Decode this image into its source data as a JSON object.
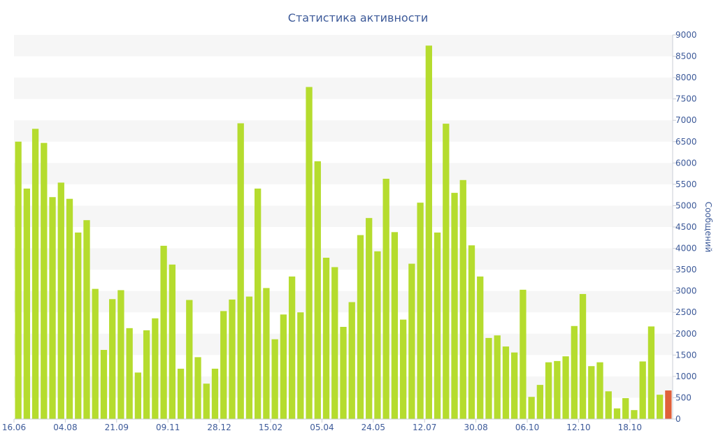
{
  "chart_data": {
    "type": "bar",
    "title": "Статистика активности",
    "xlabel": "",
    "ylabel": "Сообщений",
    "ylim": [
      0,
      9000
    ],
    "y_ticks": [
      0,
      500,
      1000,
      1500,
      2000,
      2500,
      3000,
      3500,
      4000,
      4500,
      5000,
      5500,
      6000,
      6500,
      7000,
      7500,
      8000,
      8500,
      9000
    ],
    "y_axis_position": "right",
    "grid": "horizontal alternating bands",
    "x_tick_labels": [
      {
        "index": 0,
        "label": "16.06"
      },
      {
        "index": 6,
        "label": "04.08"
      },
      {
        "index": 12,
        "label": "21.09"
      },
      {
        "index": 18,
        "label": "09.11"
      },
      {
        "index": 24,
        "label": "28.12"
      },
      {
        "index": 30,
        "label": "15.02"
      },
      {
        "index": 36,
        "label": "05.04"
      },
      {
        "index": 42,
        "label": "24.05"
      },
      {
        "index": 48,
        "label": "12.07"
      },
      {
        "index": 54,
        "label": "30.08"
      },
      {
        "index": 60,
        "label": "06.10"
      },
      {
        "index": 66,
        "label": "12.10"
      },
      {
        "index": 72,
        "label": "18.10"
      }
    ],
    "values": [
      6500,
      5400,
      6800,
      6470,
      5200,
      5540,
      5160,
      4370,
      4660,
      3050,
      1620,
      2810,
      3020,
      2130,
      1090,
      2080,
      2360,
      4060,
      3620,
      1180,
      2790,
      1450,
      830,
      1180,
      2530,
      2800,
      6930,
      2870,
      5400,
      3070,
      1870,
      2450,
      3340,
      2500,
      7780,
      6040,
      3780,
      3560,
      2160,
      2740,
      4310,
      4710,
      3930,
      5630,
      4380,
      2330,
      3640,
      5070,
      8750,
      4370,
      6920,
      5300,
      5600,
      4070,
      3340,
      1900,
      1960,
      1700,
      1560,
      3030,
      520,
      800,
      1330,
      1360,
      1470,
      2180,
      2930,
      1240,
      1330,
      650,
      250,
      490,
      210,
      1350,
      2170,
      570,
      670
    ],
    "series_colors": {
      "main": "#b5dc2e",
      "highlight": "#e0603a"
    },
    "highlight_index": 76
  }
}
